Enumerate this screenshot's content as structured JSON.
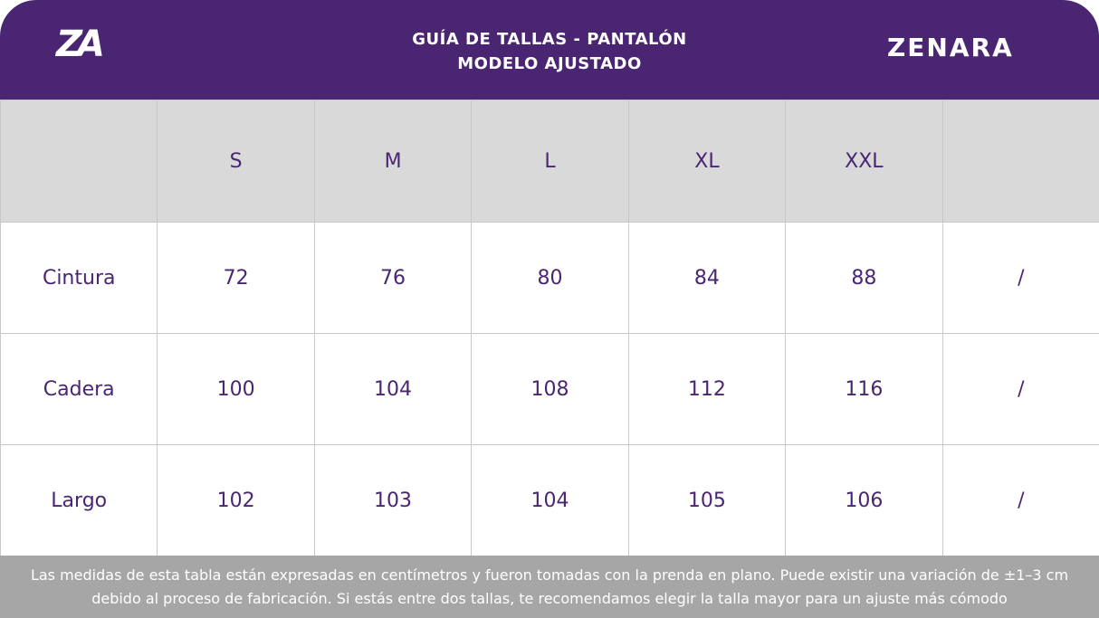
{
  "header": {
    "logo": "ZA",
    "title_lines": [
      "GUÍA DE TALLAS - PANTALÓN",
      "MODELO AJUSTADO"
    ],
    "brand": "ZENARA"
  },
  "table": {
    "columns": [
      "S",
      "M",
      "L",
      "XL",
      "XXL"
    ],
    "rows": [
      {
        "label": "Cintura",
        "values": [
          72,
          76,
          80,
          84,
          88
        ],
        "extra": "/"
      },
      {
        "label": "Cadera",
        "values": [
          100,
          104,
          108,
          112,
          116
        ],
        "extra": "/"
      },
      {
        "label": "Largo",
        "values": [
          102,
          103,
          104,
          105,
          106
        ],
        "extra": "/"
      }
    ]
  },
  "footer": {
    "note_lines": [
      "Las medidas de esta tabla están expresadas en centímetros y fueron tomadas con la prenda en plano. Puede existir una variación de ±1–3 cm",
      "debido al proceso de fabricación. Si estás entre dos tallas, te recomendamos elegir la talla mayor para un ajuste más cómodo"
    ]
  }
}
